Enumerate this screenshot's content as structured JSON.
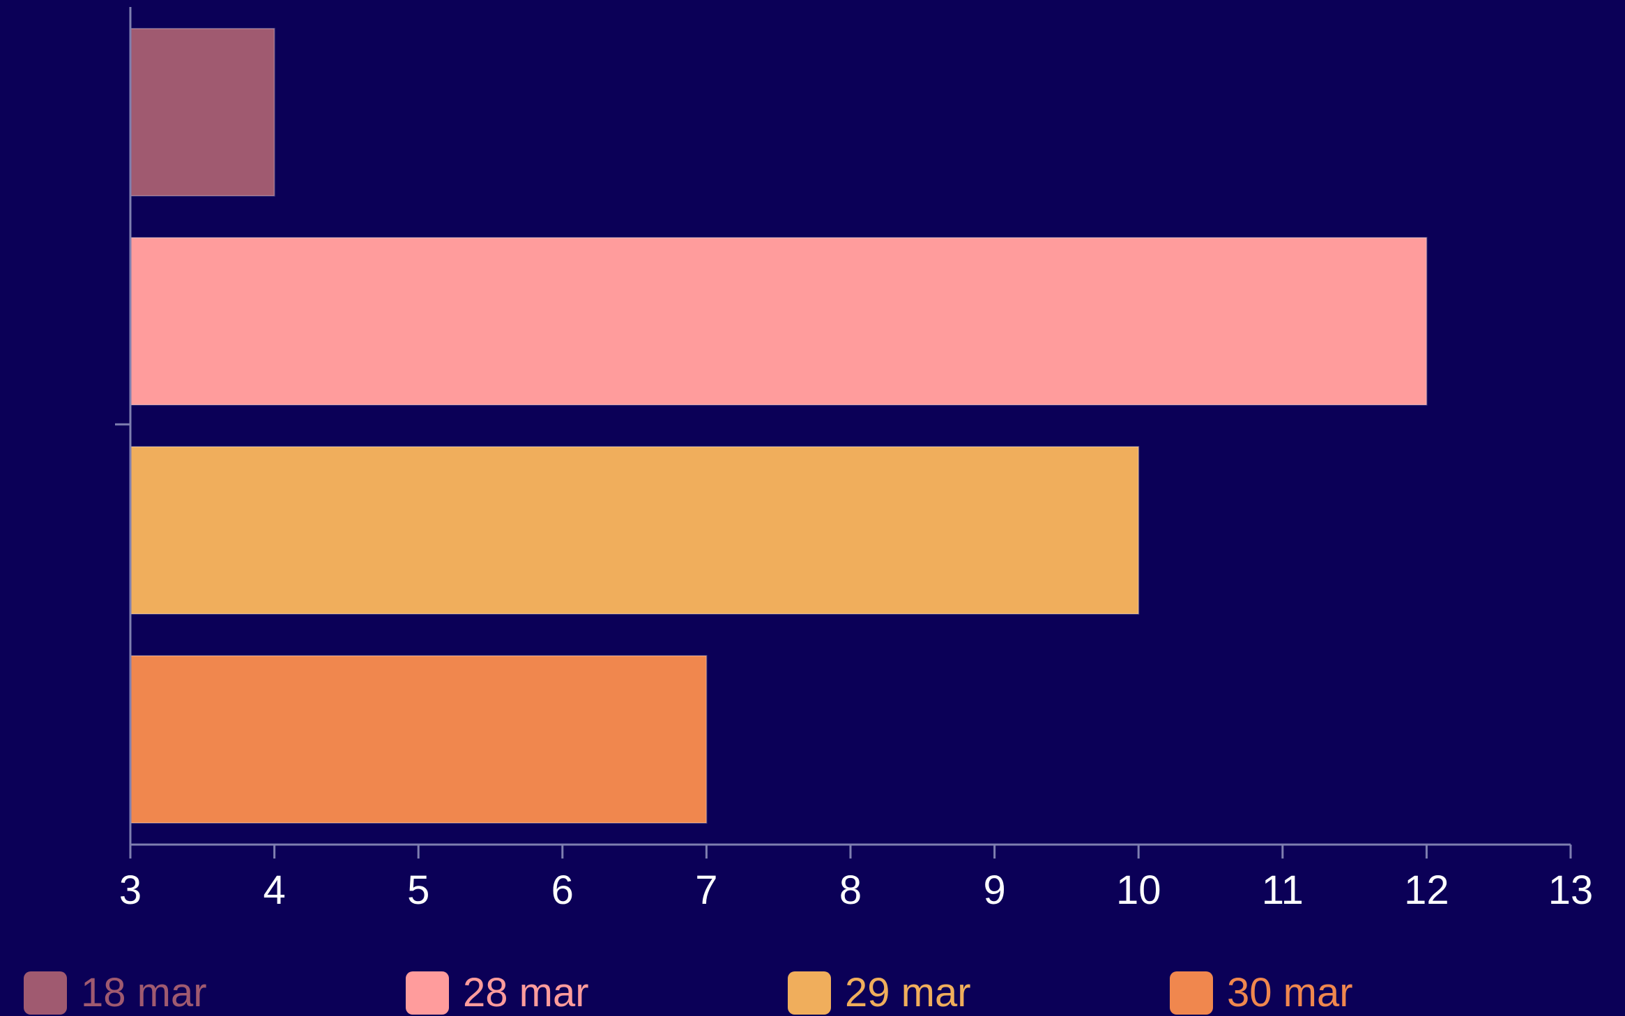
{
  "colors": {
    "background": "#0b0057",
    "axis": "#7f7fb0"
  },
  "chart_data": {
    "type": "bar",
    "orientation": "horizontal",
    "title": "",
    "xlabel": "",
    "ylabel": "",
    "xlim": [
      3,
      13
    ],
    "xticks": [
      3,
      4,
      5,
      6,
      7,
      8,
      9,
      10,
      11,
      12,
      13
    ],
    "grid": false,
    "legend_position": "bottom",
    "series": [
      {
        "name": "18 mar",
        "value": 4,
        "color": "#a05a70"
      },
      {
        "name": "28 mar",
        "value": 12,
        "color": "#ff9c9c"
      },
      {
        "name": "29 mar",
        "value": 10,
        "color": "#f0ae5c"
      },
      {
        "name": "30 mar",
        "value": 7,
        "color": "#f0874e"
      }
    ]
  }
}
